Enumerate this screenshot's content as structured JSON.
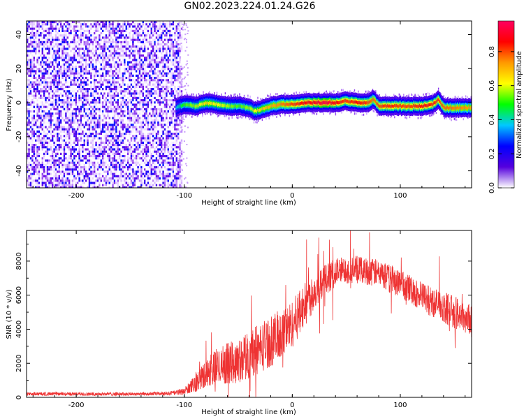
{
  "title": "GN02.2023.224.01.24.G26",
  "chart_data": [
    {
      "type": "heatmap",
      "xlabel": "Height of straight line (km)",
      "ylabel": "Frequency (Hz)",
      "xlim": [
        -246,
        166
      ],
      "ylim": [
        -50,
        48
      ],
      "xticks": [
        -200,
        -100,
        0,
        100
      ],
      "yticks": [
        -40,
        -20,
        0,
        20,
        40
      ],
      "grid": false,
      "colorbar": {
        "label": "Normalized spectral amplitude",
        "range": [
          0,
          0.98
        ],
        "ticks": [
          0.0,
          0.2,
          0.4,
          0.6,
          0.8
        ],
        "tick_labels": [
          "0.0",
          "0.2",
          "0.4",
          "0.6",
          "0.8"
        ],
        "colors": [
          "#ffffff",
          "#5500dd",
          "#0000ff",
          "#00c8ff",
          "#00ff00",
          "#ffff00",
          "#ff9900",
          "#ff0000",
          "#ff0060"
        ]
      },
      "noise_region_x": [
        -246,
        -106
      ],
      "ridge": {
        "x": [
          -108,
          -100,
          -90,
          -80,
          -70,
          -60,
          -50,
          -40,
          -35,
          -30,
          -20,
          -10,
          0,
          10,
          20,
          30,
          40,
          50,
          60,
          70,
          75,
          80,
          90,
          100,
          110,
          120,
          130,
          135,
          140,
          150,
          160,
          166
        ],
        "frequency": [
          -3,
          -1,
          -2,
          0,
          -1,
          -2,
          -2,
          -3,
          -5,
          -4,
          -2,
          -1,
          -1,
          0,
          0,
          0,
          0,
          1,
          0,
          0,
          2,
          -2,
          -2,
          -2,
          -2,
          -2,
          -1,
          2,
          -3,
          -3,
          -3,
          -3
        ],
        "amplitude": [
          0.3,
          0.45,
          0.5,
          0.6,
          0.55,
          0.5,
          0.45,
          0.5,
          0.55,
          0.6,
          0.65,
          0.7,
          0.75,
          0.8,
          0.85,
          0.95,
          0.8,
          0.75,
          0.8,
          0.75,
          0.7,
          0.75,
          0.78,
          0.75,
          0.75,
          0.8,
          0.78,
          0.75,
          0.72,
          0.7,
          0.68,
          0.65
        ]
      }
    },
    {
      "type": "line",
      "xlabel": "Height of straight line (km)",
      "ylabel": "SNR (10 * v/v)",
      "xlim": [
        -246,
        166
      ],
      "ylim": [
        0,
        9800
      ],
      "xticks": [
        -200,
        -100,
        0,
        100
      ],
      "yticks": [
        0,
        2000,
        4000,
        6000,
        8000
      ],
      "grid": false,
      "color": "#ee3333",
      "series": [
        {
          "x": [
            -246,
            -220,
            -200,
            -180,
            -160,
            -140,
            -120,
            -110,
            -100,
            -90,
            -80,
            -70,
            -60,
            -50,
            -40,
            -30,
            -20,
            -10,
            0,
            10,
            20,
            30,
            40,
            50,
            60,
            70,
            80,
            90,
            100,
            110,
            120,
            130,
            140,
            150,
            160,
            166
          ],
          "values": [
            200,
            200,
            200,
            200,
            200,
            200,
            220,
            250,
            350,
            800,
            1400,
            1800,
            2000,
            2100,
            2500,
            2900,
            3300,
            3700,
            4300,
            5300,
            6200,
            6900,
            7300,
            7500,
            7500,
            7400,
            7300,
            7000,
            6700,
            6300,
            5900,
            5600,
            5300,
            5000,
            4700,
            4500
          ],
          "spread": [
            100,
            100,
            100,
            100,
            100,
            100,
            110,
            130,
            200,
            500,
            800,
            1100,
            1200,
            1300,
            1400,
            1500,
            1500,
            1500,
            1400,
            1300,
            1100,
            900,
            850,
            850,
            800,
            800,
            800,
            850,
            850,
            850,
            850,
            900,
            900,
            950,
            950,
            1000
          ]
        }
      ]
    }
  ]
}
